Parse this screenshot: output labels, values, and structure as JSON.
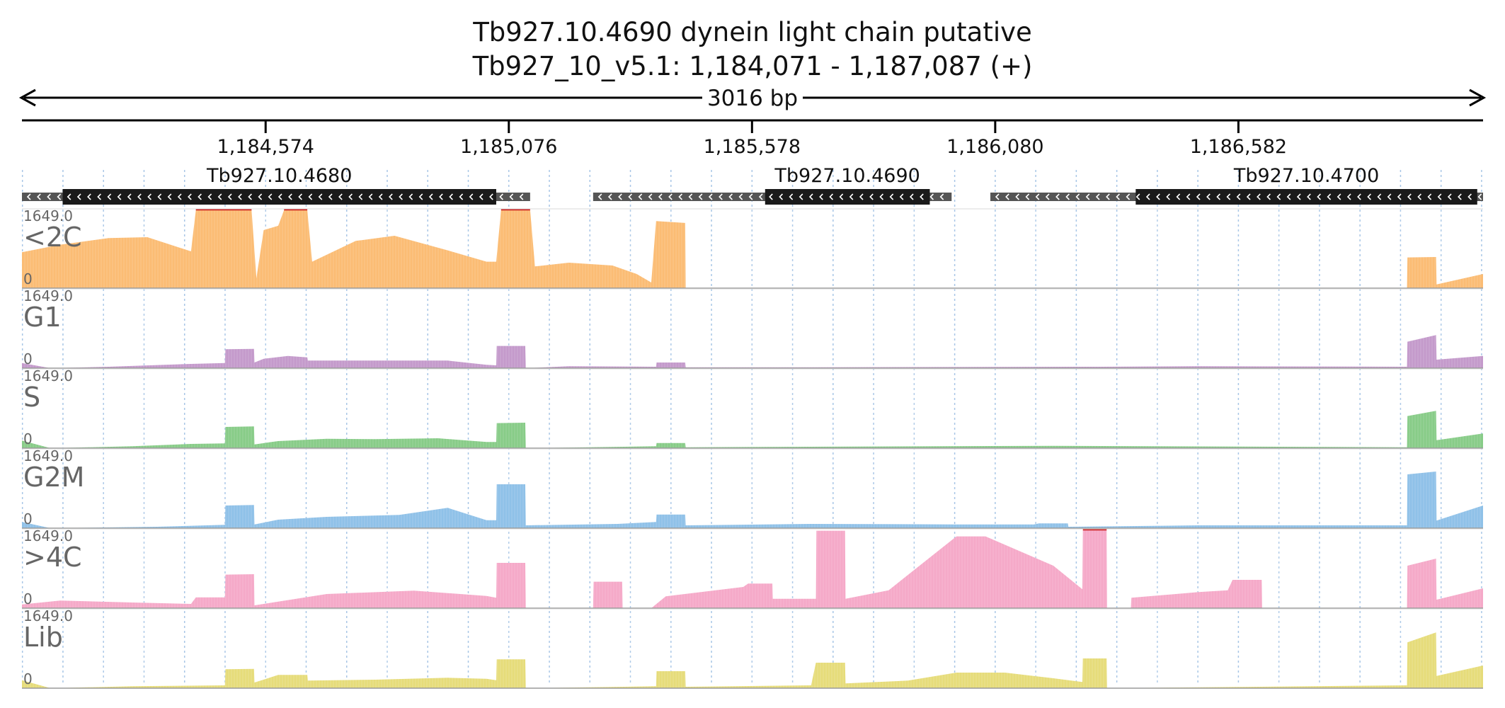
{
  "chart_data": {
    "type": "area",
    "title": "Tb927.10.4690  dynein light chain  putative",
    "subtitle": "Tb927_10_v5.1: 1,184,071 - 1,187,087 (+)",
    "span_label": "3016 bp",
    "xlim": [
      1184071,
      1187087
    ],
    "ylim": [
      0,
      1649.0
    ],
    "ymax_label": "1649.0",
    "ymin_label": "0",
    "x_ticks": [
      {
        "pos": 1184574,
        "label": "1,184,574"
      },
      {
        "pos": 1185076,
        "label": "1,185,076"
      },
      {
        "pos": 1185578,
        "label": "1,185,578"
      },
      {
        "pos": 1186080,
        "label": "1,186,080"
      },
      {
        "pos": 1186582,
        "label": "1,186,582"
      }
    ],
    "genes": [
      {
        "name": "Tb927.10.4680",
        "strand": "-",
        "start": 1184071,
        "end": 1185120,
        "cds_start": 1184155,
        "cds_end": 1185050
      },
      {
        "name": "Tb927.10.4690",
        "strand": "-",
        "start": 1185250,
        "end": 1185990,
        "cds_start": 1185605,
        "cds_end": 1185945
      },
      {
        "name": "Tb927.10.4700",
        "strand": "-",
        "start": 1186070,
        "end": 1187087,
        "cds_start": 1186370,
        "cds_end": 1187075
      }
    ],
    "series": [
      {
        "name": "<2C",
        "color": "#fbbc74",
        "points": [
          [
            1184071,
            760
          ],
          [
            1184150,
            920
          ],
          [
            1184250,
            1060
          ],
          [
            1184330,
            1080
          ],
          [
            1184420,
            780
          ],
          [
            1184430,
            1649
          ],
          [
            1184545,
            1649
          ],
          [
            1184555,
            210
          ],
          [
            1184570,
            1230
          ],
          [
            1184600,
            1320
          ],
          [
            1184612,
            1649
          ],
          [
            1184660,
            1649
          ],
          [
            1184670,
            560
          ],
          [
            1184760,
            1000
          ],
          [
            1184840,
            1110
          ],
          [
            1184950,
            800
          ],
          [
            1185030,
            560
          ],
          [
            1185050,
            560
          ],
          [
            1185060,
            1649
          ],
          [
            1185120,
            1649
          ],
          [
            1185130,
            460
          ],
          [
            1185200,
            540
          ],
          [
            1185290,
            480
          ],
          [
            1185340,
            300
          ],
          [
            1185370,
            120
          ],
          [
            1185380,
            1420
          ],
          [
            1185440,
            1380
          ],
          [
            1185441,
            0
          ],
          [
            1186930,
            0
          ],
          [
            1186931,
            650
          ],
          [
            1186990,
            660
          ],
          [
            1186991,
            80
          ],
          [
            1187087,
            300
          ]
        ]
      },
      {
        "name": "G1",
        "color": "#c49acb",
        "points": [
          [
            1184071,
            110
          ],
          [
            1184130,
            0
          ],
          [
            1184250,
            30
          ],
          [
            1184420,
            90
          ],
          [
            1184490,
            110
          ],
          [
            1184491,
            400
          ],
          [
            1184550,
            410
          ],
          [
            1184551,
            120
          ],
          [
            1184570,
            200
          ],
          [
            1184620,
            260
          ],
          [
            1184660,
            230
          ],
          [
            1184661,
            160
          ],
          [
            1184800,
            160
          ],
          [
            1184950,
            160
          ],
          [
            1185030,
            70
          ],
          [
            1185050,
            60
          ],
          [
            1185051,
            470
          ],
          [
            1185110,
            470
          ],
          [
            1185111,
            0
          ],
          [
            1185200,
            40
          ],
          [
            1185380,
            30
          ],
          [
            1185381,
            120
          ],
          [
            1185440,
            120
          ],
          [
            1185441,
            20
          ],
          [
            1185700,
            20
          ],
          [
            1186300,
            30
          ],
          [
            1186500,
            40
          ],
          [
            1186930,
            30
          ],
          [
            1186931,
            560
          ],
          [
            1186990,
            700
          ],
          [
            1186991,
            180
          ],
          [
            1187087,
            260
          ]
        ]
      },
      {
        "name": "S",
        "color": "#88cc88",
        "points": [
          [
            1184071,
            160
          ],
          [
            1184130,
            0
          ],
          [
            1184300,
            40
          ],
          [
            1184420,
            90
          ],
          [
            1184490,
            100
          ],
          [
            1184491,
            450
          ],
          [
            1184550,
            460
          ],
          [
            1184551,
            80
          ],
          [
            1184600,
            150
          ],
          [
            1184700,
            200
          ],
          [
            1184800,
            190
          ],
          [
            1184930,
            210
          ],
          [
            1185030,
            130
          ],
          [
            1185050,
            130
          ],
          [
            1185051,
            530
          ],
          [
            1185110,
            540
          ],
          [
            1185111,
            0
          ],
          [
            1185380,
            40
          ],
          [
            1185381,
            110
          ],
          [
            1185440,
            110
          ],
          [
            1185441,
            20
          ],
          [
            1186200,
            50
          ],
          [
            1186930,
            20
          ],
          [
            1186931,
            680
          ],
          [
            1186990,
            790
          ],
          [
            1186991,
            170
          ],
          [
            1187087,
            310
          ]
        ]
      },
      {
        "name": "G2M",
        "color": "#8fc1e8",
        "points": [
          [
            1184071,
            130
          ],
          [
            1184130,
            0
          ],
          [
            1184350,
            30
          ],
          [
            1184490,
            70
          ],
          [
            1184491,
            480
          ],
          [
            1184550,
            490
          ],
          [
            1184551,
            80
          ],
          [
            1184600,
            180
          ],
          [
            1184700,
            240
          ],
          [
            1184850,
            280
          ],
          [
            1184950,
            430
          ],
          [
            1185030,
            170
          ],
          [
            1185050,
            170
          ],
          [
            1185051,
            930
          ],
          [
            1185110,
            930
          ],
          [
            1185111,
            60
          ],
          [
            1185300,
            90
          ],
          [
            1185380,
            130
          ],
          [
            1185381,
            290
          ],
          [
            1185440,
            290
          ],
          [
            1185441,
            60
          ],
          [
            1185700,
            90
          ],
          [
            1186000,
            80
          ],
          [
            1186160,
            80
          ],
          [
            1186170,
            100
          ],
          [
            1186171,
            100
          ],
          [
            1186230,
            100
          ],
          [
            1186231,
            30
          ],
          [
            1186500,
            60
          ],
          [
            1186930,
            60
          ],
          [
            1186931,
            1140
          ],
          [
            1186990,
            1200
          ],
          [
            1186991,
            160
          ],
          [
            1187087,
            480
          ]
        ]
      },
      {
        "name": ">4C",
        "color": "#f5a9c8",
        "points": [
          [
            1184071,
            80
          ],
          [
            1184150,
            160
          ],
          [
            1184300,
            120
          ],
          [
            1184420,
            90
          ],
          [
            1184430,
            230
          ],
          [
            1184490,
            230
          ],
          [
            1184491,
            710
          ],
          [
            1184550,
            720
          ],
          [
            1184551,
            60
          ],
          [
            1184700,
            300
          ],
          [
            1184880,
            370
          ],
          [
            1185030,
            260
          ],
          [
            1185050,
            220
          ],
          [
            1185051,
            960
          ],
          [
            1185110,
            960
          ],
          [
            1185111,
            0
          ],
          [
            1185250,
            0
          ],
          [
            1185251,
            560
          ],
          [
            1185310,
            560
          ],
          [
            1185311,
            0
          ],
          [
            1185370,
            0
          ],
          [
            1185400,
            250
          ],
          [
            1185560,
            450
          ],
          [
            1185570,
            520
          ],
          [
            1185620,
            520
          ],
          [
            1185621,
            200
          ],
          [
            1185710,
            200
          ],
          [
            1185711,
            1640
          ],
          [
            1185770,
            1640
          ],
          [
            1185771,
            200
          ],
          [
            1185860,
            380
          ],
          [
            1186000,
            1520
          ],
          [
            1186060,
            1520
          ],
          [
            1186200,
            900
          ],
          [
            1186260,
            400
          ],
          [
            1186261,
            1649
          ],
          [
            1186310,
            1649
          ],
          [
            1186311,
            0
          ],
          [
            1186360,
            0
          ],
          [
            1186361,
            220
          ],
          [
            1186500,
            340
          ],
          [
            1186560,
            380
          ],
          [
            1186570,
            600
          ],
          [
            1186630,
            600
          ],
          [
            1186631,
            0
          ],
          [
            1186930,
            0
          ],
          [
            1186931,
            900
          ],
          [
            1186990,
            1050
          ],
          [
            1186991,
            180
          ],
          [
            1187087,
            420
          ]
        ]
      },
      {
        "name": "Lib",
        "color": "#e6dc7a",
        "points": [
          [
            1184071,
            170
          ],
          [
            1184130,
            0
          ],
          [
            1184300,
            40
          ],
          [
            1184490,
            60
          ],
          [
            1184491,
            400
          ],
          [
            1184550,
            410
          ],
          [
            1184551,
            120
          ],
          [
            1184600,
            280
          ],
          [
            1184660,
            280
          ],
          [
            1184661,
            160
          ],
          [
            1184800,
            180
          ],
          [
            1184950,
            220
          ],
          [
            1185030,
            200
          ],
          [
            1185050,
            170
          ],
          [
            1185051,
            610
          ],
          [
            1185110,
            610
          ],
          [
            1185111,
            0
          ],
          [
            1185380,
            40
          ],
          [
            1185381,
            360
          ],
          [
            1185440,
            360
          ],
          [
            1185441,
            30
          ],
          [
            1185700,
            60
          ],
          [
            1185710,
            540
          ],
          [
            1185770,
            540
          ],
          [
            1185771,
            100
          ],
          [
            1185900,
            160
          ],
          [
            1186000,
            330
          ],
          [
            1186100,
            330
          ],
          [
            1186200,
            210
          ],
          [
            1186260,
            130
          ],
          [
            1186261,
            630
          ],
          [
            1186310,
            630
          ],
          [
            1186311,
            0
          ],
          [
            1186930,
            60
          ],
          [
            1186931,
            970
          ],
          [
            1186990,
            1180
          ],
          [
            1186991,
            260
          ],
          [
            1187087,
            480
          ]
        ]
      }
    ]
  }
}
